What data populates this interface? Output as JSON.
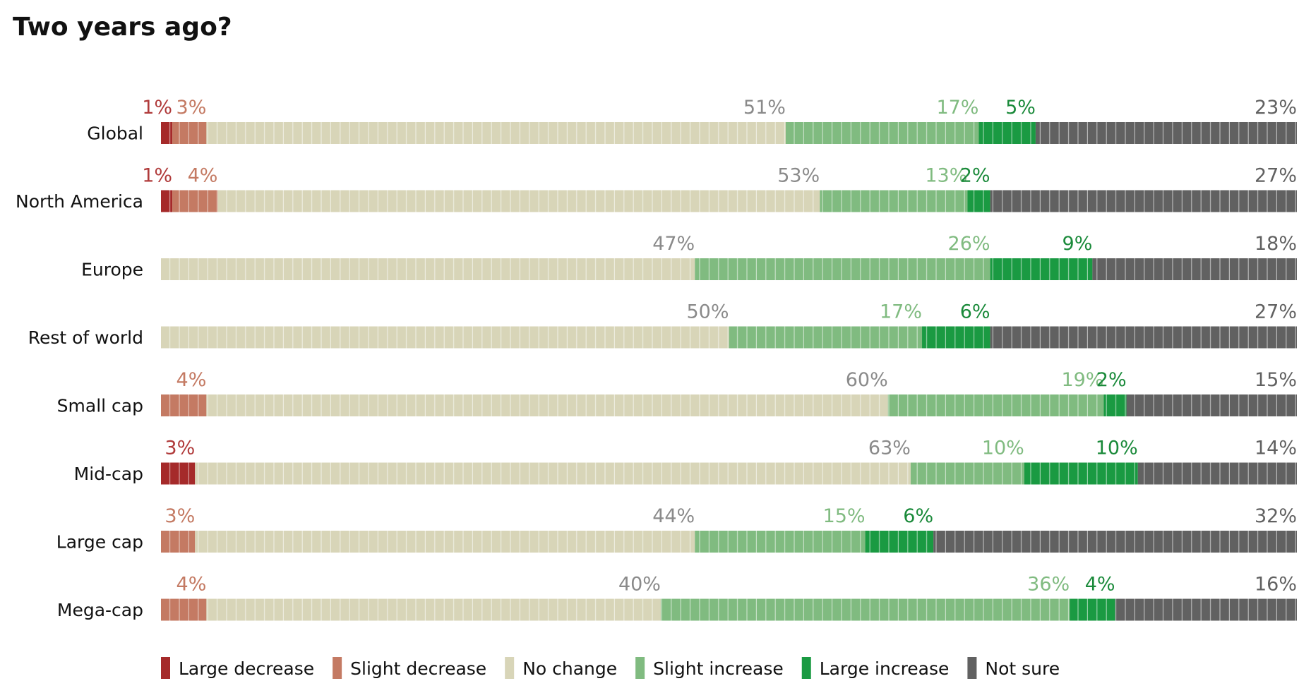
{
  "chart_data": {
    "type": "bar",
    "orientation": "horizontal",
    "stacked": true,
    "title": "Two years ago?",
    "xlim": [
      0,
      100
    ],
    "legend_position": "bottom",
    "categories": [
      "Global",
      "North America",
      "Europe",
      "Rest of world",
      "Small cap",
      "Mid-cap",
      "Large cap",
      "Mega-cap"
    ],
    "series": [
      {
        "name": "Large decrease",
        "color": "#a52a2a",
        "label_color": "#b03a3a",
        "values": [
          1,
          1,
          0,
          0,
          0,
          3,
          0,
          0
        ]
      },
      {
        "name": "Slight decrease",
        "color": "#c47a63",
        "label_color": "#c47a63",
        "values": [
          3,
          4,
          0,
          0,
          4,
          0,
          3,
          4
        ]
      },
      {
        "name": "No change",
        "color": "#d8d5b8",
        "label_color": "#8a8a8a",
        "values": [
          51,
          53,
          47,
          50,
          60,
          63,
          44,
          40
        ]
      },
      {
        "name": "Slight increase",
        "color": "#80bb80",
        "label_color": "#80bb80",
        "values": [
          17,
          13,
          26,
          17,
          19,
          10,
          15,
          36
        ]
      },
      {
        "name": "Large increase",
        "color": "#1a9a42",
        "label_color": "#1a8a3a",
        "values": [
          5,
          2,
          9,
          6,
          2,
          10,
          6,
          4
        ]
      },
      {
        "name": "Not sure",
        "color": "#616161",
        "label_color": "#616161",
        "values": [
          23,
          27,
          18,
          27,
          15,
          14,
          32,
          16
        ]
      }
    ],
    "labels": [
      [
        "1%",
        "3%",
        "51%",
        "17%",
        "5%",
        "23%"
      ],
      [
        "1%",
        "4%",
        "53%",
        "13%",
        "2%",
        "27%"
      ],
      [
        "",
        "",
        "47%",
        "26%",
        "9%",
        "18%"
      ],
      [
        "",
        "",
        "50%",
        "17%",
        "6%",
        "27%"
      ],
      [
        "",
        "4%",
        "60%",
        "19%",
        "2%",
        "15%"
      ],
      [
        "3%",
        "",
        "63%",
        "10%",
        "10%",
        "14%"
      ],
      [
        "",
        "3%",
        "44%",
        "15%",
        "6%",
        "32%"
      ],
      [
        "",
        "4%",
        "40%",
        "36%",
        "4%",
        "16%"
      ]
    ]
  }
}
